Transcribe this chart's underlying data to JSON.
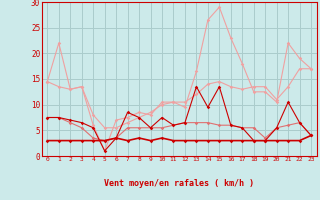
{
  "x": [
    0,
    1,
    2,
    3,
    4,
    5,
    6,
    7,
    8,
    9,
    10,
    11,
    12,
    13,
    14,
    15,
    16,
    17,
    18,
    19,
    20,
    21,
    22,
    23
  ],
  "series_light1": [
    14.5,
    22.0,
    13.0,
    13.5,
    6.0,
    1.0,
    7.0,
    7.5,
    8.5,
    8.0,
    10.5,
    10.5,
    9.5,
    16.5,
    26.5,
    29.0,
    23.0,
    18.0,
    12.5,
    12.5,
    10.5,
    22.0,
    19.0,
    17.0
  ],
  "series_light2": [
    14.5,
    13.5,
    13.0,
    13.5,
    8.0,
    5.5,
    5.5,
    6.5,
    7.5,
    8.5,
    10.0,
    10.5,
    10.5,
    12.0,
    14.0,
    14.5,
    13.5,
    13.0,
    13.5,
    13.5,
    11.0,
    13.5,
    17.0,
    17.0
  ],
  "series_mid1": [
    7.5,
    7.5,
    6.5,
    5.5,
    3.5,
    3.0,
    3.5,
    5.5,
    5.5,
    5.5,
    5.5,
    6.0,
    6.5,
    6.5,
    6.5,
    6.0,
    6.0,
    5.5,
    5.5,
    3.5,
    5.5,
    6.0,
    6.5,
    4.0
  ],
  "series_dark1": [
    7.5,
    7.5,
    7.0,
    6.5,
    5.5,
    1.0,
    3.5,
    8.5,
    7.5,
    5.5,
    7.5,
    6.0,
    6.5,
    13.5,
    9.5,
    13.5,
    6.0,
    5.5,
    3.0,
    3.0,
    5.5,
    10.5,
    6.5,
    4.0
  ],
  "series_dark2": [
    3.0,
    3.0,
    3.0,
    3.0,
    3.0,
    3.0,
    3.5,
    3.0,
    3.5,
    3.0,
    3.5,
    3.0,
    3.0,
    3.0,
    3.0,
    3.0,
    3.0,
    3.0,
    3.0,
    3.0,
    3.0,
    3.0,
    3.0,
    4.0
  ],
  "color_dark": "#cc0000",
  "color_mid": "#e07070",
  "color_light": "#f0a0a0",
  "bg_color": "#cceaea",
  "grid_color": "#aacccc",
  "xlabel": "Vent moyen/en rafales ( km/h )",
  "ylim": [
    0,
    30
  ],
  "xlim": [
    -0.5,
    23.5
  ],
  "yticks": [
    0,
    5,
    10,
    15,
    20,
    25,
    30
  ]
}
